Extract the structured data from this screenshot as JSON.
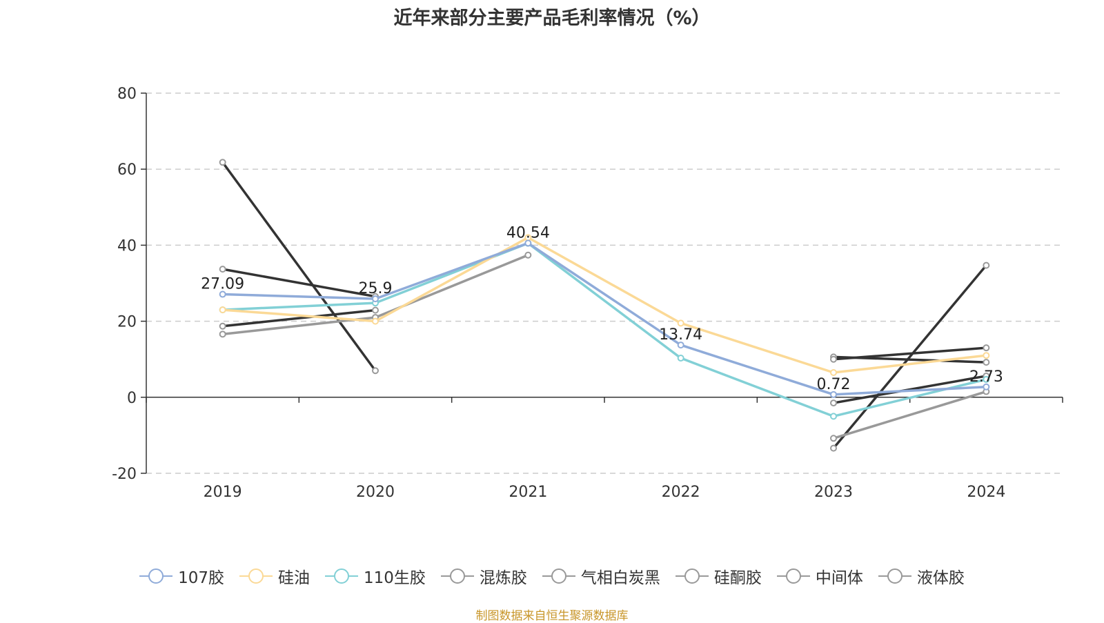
{
  "chart_data": {
    "type": "line",
    "title": "近年来部分主要产品毛利率情况（%）",
    "categories": [
      "2019",
      "2020",
      "2021",
      "2022",
      "2023",
      "2024"
    ],
    "ylim": [
      -20,
      80
    ],
    "yticks": [
      -20,
      0,
      20,
      40,
      60,
      80
    ],
    "grid": true,
    "legend_position": "bottom",
    "series": [
      {
        "name": "107胶",
        "color": "#8fabd9",
        "values": [
          27.09,
          25.9,
          40.54,
          13.74,
          0.72,
          2.73
        ]
      },
      {
        "name": "硅油",
        "color": "#fbd996",
        "values": [
          23,
          20,
          42,
          19.5,
          6.5,
          11
        ]
      },
      {
        "name": "110生胶",
        "color": "#82d0d6",
        "values": [
          23,
          24.8,
          40.5,
          10.3,
          -5,
          4.7
        ]
      },
      {
        "name": "混炼胶",
        "color": "#333333",
        "values": [
          33.7,
          26.5,
          null,
          null,
          10,
          13
        ]
      },
      {
        "name": "气相白炭黑",
        "color": "#999999",
        "values": [
          16.6,
          21,
          37.4,
          null,
          -10.8,
          1.5
        ]
      },
      {
        "name": "硅酮胶",
        "color": "#333333",
        "values": [
          18.7,
          22.9,
          null,
          null,
          -1.5,
          5.6
        ]
      },
      {
        "name": "中间体",
        "color": "#333333",
        "values": [
          61.8,
          7,
          null,
          null,
          -13.4,
          34.7
        ]
      },
      {
        "name": "液体胶",
        "color": "#333333",
        "values": [
          null,
          null,
          null,
          null,
          10.6,
          9.2
        ]
      }
    ],
    "labels": [
      {
        "series": 0,
        "index": 0,
        "text": "27.09"
      },
      {
        "series": 0,
        "index": 1,
        "text": "25.9"
      },
      {
        "series": 0,
        "index": 2,
        "text": "40.54"
      },
      {
        "series": 0,
        "index": 3,
        "text": "13.74"
      },
      {
        "series": 0,
        "index": 4,
        "text": "0.72"
      },
      {
        "series": 0,
        "index": 5,
        "text": "2.73"
      }
    ]
  },
  "legend_items": [
    {
      "label": "107胶",
      "color": "#8fabd9"
    },
    {
      "label": "硅油",
      "color": "#fbd996"
    },
    {
      "label": "110生胶",
      "color": "#82d0d6"
    },
    {
      "label": "混炼胶",
      "color": "#999999"
    },
    {
      "label": "气相白炭黑",
      "color": "#999999"
    },
    {
      "label": "硅酮胶",
      "color": "#999999"
    },
    {
      "label": "中间体",
      "color": "#999999"
    },
    {
      "label": "液体胶",
      "color": "#999999"
    }
  ],
  "source_note": "制图数据来自恒生聚源数据库"
}
